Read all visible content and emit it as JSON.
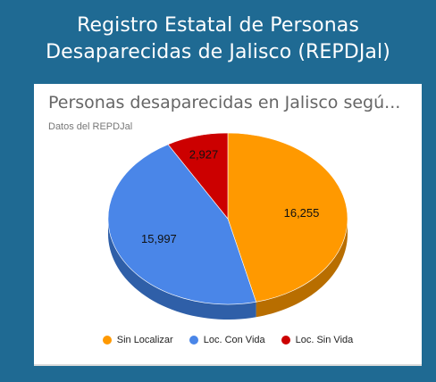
{
  "header": {
    "line1": "Registro Estatal de Personas",
    "line2": "Desaparecidas de Jalisco (REPDJal)"
  },
  "chart_data": {
    "type": "pie",
    "title": "Personas desaparecidas en Jalisco segú...",
    "subtitle": "Datos del REPDJal",
    "three_d": true,
    "legend_position": "bottom",
    "slices": [
      {
        "label": "Sin Localizar",
        "value": 16255,
        "display": "16,255",
        "color": "#ff9900",
        "side_color": "#b86e00"
      },
      {
        "label": "Loc. Con Vida",
        "value": 15997,
        "display": "15,997",
        "color": "#4a86e8",
        "side_color": "#2f5fa8"
      },
      {
        "label": "Loc. Sin Vida",
        "value": 2927,
        "display": "2,927",
        "color": "#cc0000",
        "side_color": "#8a0000"
      }
    ]
  }
}
